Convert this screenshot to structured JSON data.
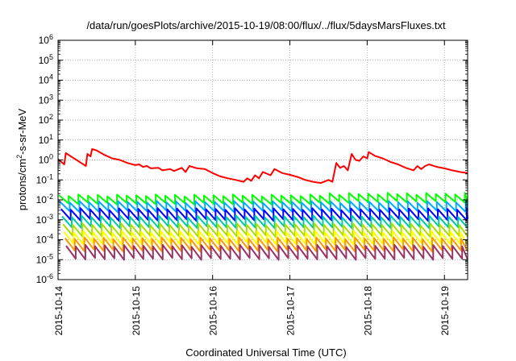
{
  "chart_data": {
    "type": "line",
    "title": "/data/run/goesPlots/archive/2015-10-19/08:00/flux/../flux/5daysMarsFluxes.txt",
    "xlabel": "Coordinated Universal Time (UTC)",
    "ylabel": {
      "base": "protons/cm",
      "sup": "2",
      "rest": "-s-sr-MeV"
    },
    "yscale": "log",
    "ylim": [
      1e-06,
      1000000.0
    ],
    "xlim": [
      0,
      5.3
    ],
    "grid": true,
    "x_ticks": [
      {
        "x": 0,
        "label": "2015-10-14"
      },
      {
        "x": 1,
        "label": "2015-10-15"
      },
      {
        "x": 2,
        "label": "2015-10-16"
      },
      {
        "x": 3,
        "label": "2015-10-17"
      },
      {
        "x": 4,
        "label": "2015-10-18"
      },
      {
        "x": 5,
        "label": "2015-10-19"
      }
    ],
    "y_ticks": [
      {
        "exp": "6"
      },
      {
        "exp": "5"
      },
      {
        "exp": "4"
      },
      {
        "exp": "3"
      },
      {
        "exp": "2"
      },
      {
        "exp": "1"
      },
      {
        "exp": "0"
      },
      {
        "exp": "-1"
      },
      {
        "exp": "-2"
      },
      {
        "exp": "-3"
      },
      {
        "exp": "-4"
      },
      {
        "exp": "-5"
      },
      {
        "exp": "-6"
      }
    ],
    "tick_base": "10",
    "series": [
      {
        "color": "#ff0000",
        "points": [
          [
            0,
            1.1
          ],
          [
            0.08,
            0.6
          ],
          [
            0.1,
            2.2
          ],
          [
            0.3,
            0.7
          ],
          [
            0.36,
            0.5
          ],
          [
            0.38,
            2.0
          ],
          [
            0.42,
            1.5
          ],
          [
            0.44,
            3.5
          ],
          [
            0.5,
            3.0
          ],
          [
            0.6,
            1.8
          ],
          [
            0.7,
            1.2
          ],
          [
            0.8,
            1.0
          ],
          [
            0.9,
            0.7
          ],
          [
            1.0,
            0.55
          ],
          [
            1.05,
            0.6
          ],
          [
            1.1,
            0.45
          ],
          [
            1.15,
            0.5
          ],
          [
            1.2,
            0.38
          ],
          [
            1.3,
            0.4
          ],
          [
            1.35,
            0.3
          ],
          [
            1.45,
            0.35
          ],
          [
            1.5,
            0.28
          ],
          [
            1.6,
            0.4
          ],
          [
            1.65,
            0.25
          ],
          [
            1.7,
            0.5
          ],
          [
            1.8,
            0.38
          ],
          [
            1.9,
            0.35
          ],
          [
            2.0,
            0.22
          ],
          [
            2.1,
            0.15
          ],
          [
            2.2,
            0.12
          ],
          [
            2.3,
            0.1
          ],
          [
            2.4,
            0.08
          ],
          [
            2.45,
            0.12
          ],
          [
            2.5,
            0.09
          ],
          [
            2.55,
            0.17
          ],
          [
            2.6,
            0.12
          ],
          [
            2.65,
            0.25
          ],
          [
            2.75,
            0.17
          ],
          [
            2.8,
            0.35
          ],
          [
            2.9,
            0.22
          ],
          [
            3.0,
            0.18
          ],
          [
            3.1,
            0.14
          ],
          [
            3.2,
            0.1
          ],
          [
            3.3,
            0.08
          ],
          [
            3.4,
            0.07
          ],
          [
            3.5,
            0.1
          ],
          [
            3.55,
            0.08
          ],
          [
            3.6,
            0.7
          ],
          [
            3.65,
            0.4
          ],
          [
            3.7,
            0.5
          ],
          [
            3.75,
            0.3
          ],
          [
            3.8,
            2.0
          ],
          [
            3.85,
            1.0
          ],
          [
            3.9,
            0.9
          ],
          [
            3.95,
            1.5
          ],
          [
            4.0,
            1.2
          ],
          [
            4.02,
            2.5
          ],
          [
            4.1,
            1.6
          ],
          [
            4.2,
            1.2
          ],
          [
            4.3,
            0.8
          ],
          [
            4.4,
            0.6
          ],
          [
            4.5,
            0.4
          ],
          [
            4.55,
            0.35
          ],
          [
            4.6,
            0.3
          ],
          [
            4.65,
            0.5
          ],
          [
            4.7,
            0.35
          ],
          [
            4.75,
            0.5
          ],
          [
            4.8,
            0.6
          ],
          [
            4.9,
            0.45
          ],
          [
            5.0,
            0.38
          ],
          [
            5.1,
            0.3
          ],
          [
            5.2,
            0.25
          ],
          [
            5.3,
            0.22
          ]
        ]
      },
      {
        "color": "#00ff00",
        "level": 0.017,
        "ratio": 2.6
      },
      {
        "color": "#00aaff",
        "level": 0.008,
        "ratio": 3.0
      },
      {
        "color": "#0000ff",
        "level": 0.0035,
        "ratio": 3.5
      },
      {
        "color": "#00ccaa",
        "level": 0.0015,
        "ratio": 3.5
      },
      {
        "color": "#aadd00",
        "level": 0.0006,
        "ratio": 3.8
      },
      {
        "color": "#ffff00",
        "level": 0.00025,
        "ratio": 4.0
      },
      {
        "color": "#ff9900",
        "level": 0.00012,
        "ratio": 4.2
      },
      {
        "color": "#993366",
        "level": 5e-05,
        "ratio": 4.5
      }
    ],
    "sawtooth_period": 0.125
  }
}
